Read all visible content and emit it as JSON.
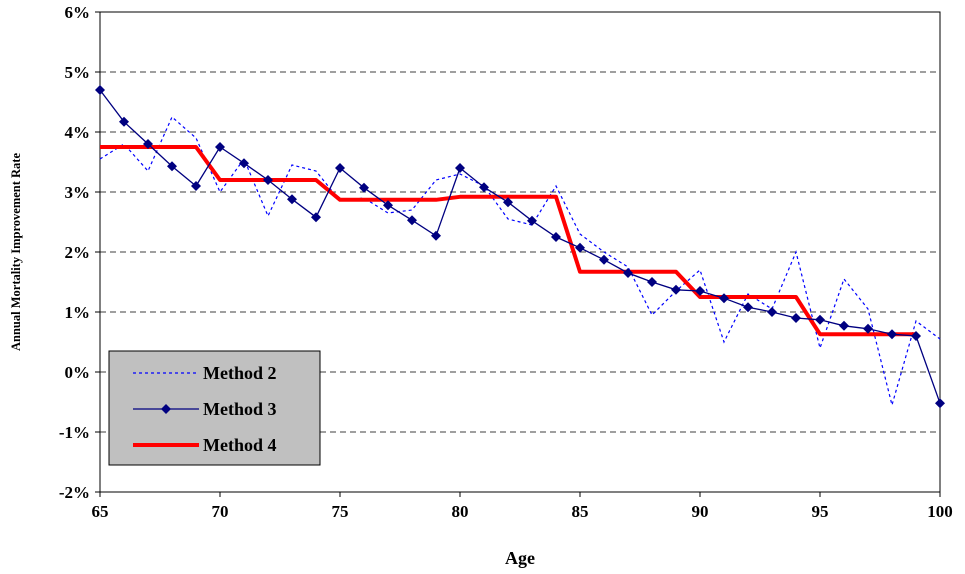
{
  "chart_data": {
    "type": "line",
    "title": "",
    "xlabel": "Age",
    "ylabel": "Annual Mortality Improvement Rate",
    "xlim": [
      65,
      100
    ],
    "ylim": [
      -2,
      6
    ],
    "x_ticks": [
      "65",
      "70",
      "75",
      "80",
      "85",
      "90",
      "95",
      "100"
    ],
    "y_ticks": [
      "-2%",
      "-1%",
      "0%",
      "1%",
      "2%",
      "3%",
      "4%",
      "5%",
      "6%"
    ],
    "grid": "horizontal dashed",
    "legend_position": "bottom-left",
    "series": [
      {
        "name": "Method 2",
        "style": "dotted",
        "color": "#0000FF",
        "x": [
          65,
          66,
          67,
          68,
          69,
          70,
          71,
          72,
          73,
          74,
          75,
          76,
          77,
          78,
          79,
          80,
          81,
          82,
          83,
          84,
          85,
          86,
          87,
          88,
          89,
          90,
          91,
          92,
          93,
          94,
          95,
          96,
          97,
          98,
          99,
          100
        ],
        "values": [
          3.55,
          3.8,
          3.35,
          4.25,
          3.9,
          3.0,
          3.55,
          2.6,
          3.45,
          3.35,
          2.85,
          2.9,
          2.65,
          2.7,
          3.2,
          3.3,
          3.1,
          2.55,
          2.45,
          3.1,
          2.3,
          2.0,
          1.75,
          0.95,
          1.35,
          1.7,
          0.5,
          1.3,
          1.05,
          2.0,
          0.4,
          1.55,
          1.05,
          -0.55,
          0.85,
          0.55
        ]
      },
      {
        "name": "Method 3",
        "style": "solid-diamond",
        "color": "#000080",
        "x": [
          65,
          66,
          67,
          68,
          69,
          70,
          71,
          72,
          73,
          74,
          75,
          76,
          77,
          78,
          79,
          80,
          81,
          82,
          83,
          84,
          85,
          86,
          87,
          88,
          89,
          90,
          91,
          92,
          93,
          94,
          95,
          96,
          97,
          98,
          99,
          100
        ],
        "values": [
          4.7,
          4.17,
          3.8,
          3.43,
          3.1,
          3.75,
          3.48,
          3.2,
          2.88,
          2.58,
          3.4,
          3.07,
          2.78,
          2.53,
          2.27,
          3.4,
          3.08,
          2.83,
          2.52,
          2.25,
          2.07,
          1.87,
          1.65,
          1.5,
          1.37,
          1.35,
          1.23,
          1.08,
          1.0,
          0.9,
          0.87,
          0.77,
          0.72,
          0.63,
          0.6,
          -0.52
        ]
      },
      {
        "name": "Method 4",
        "style": "thick-step",
        "color": "#FF0000",
        "x": [
          65,
          69,
          70,
          74,
          75,
          79,
          80,
          84,
          85,
          89,
          90,
          94,
          95,
          99
        ],
        "values": [
          3.75,
          3.75,
          3.2,
          3.2,
          2.87,
          2.87,
          2.92,
          2.92,
          1.67,
          1.67,
          1.25,
          1.25,
          0.63,
          0.63
        ]
      }
    ]
  }
}
